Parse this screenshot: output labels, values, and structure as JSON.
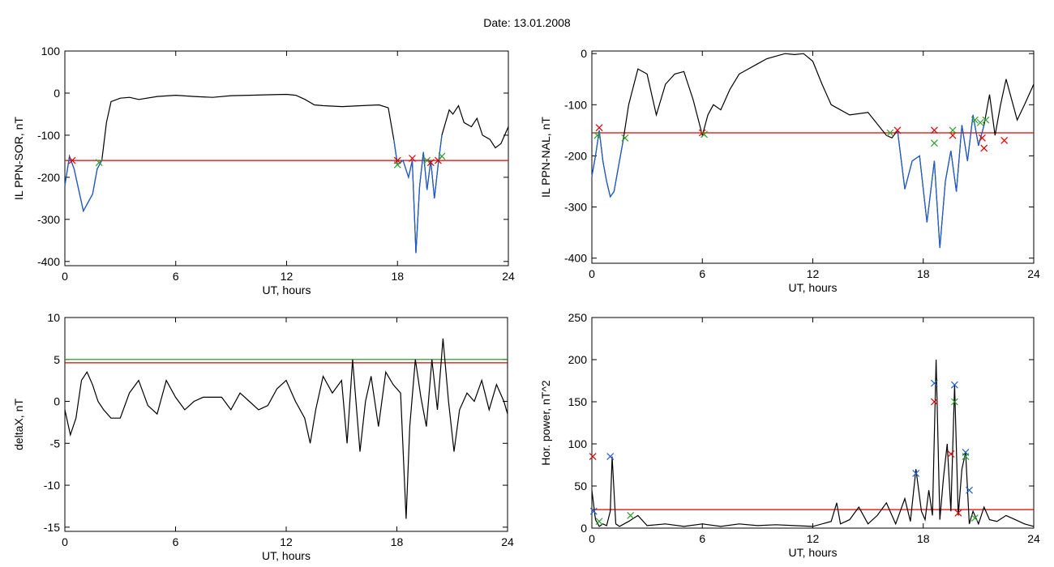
{
  "page": {
    "title": "Date:  13.01.2008"
  },
  "chart_data": [
    {
      "id": "p1",
      "type": "line",
      "xlabel": "UT, hours",
      "ylabel": "IL PPN-SOR, nT",
      "xlim": [
        0,
        24
      ],
      "ylim": [
        -410,
        100
      ],
      "xticks": [
        "0",
        "6",
        "12",
        "18",
        "24"
      ],
      "yticks": [
        "100",
        "0",
        "-100",
        "-200",
        "-300",
        "-400"
      ],
      "series": [
        {
          "color": "#000000",
          "x": [
            0,
            0.25,
            0.5,
            0.75,
            1.0,
            1.25,
            1.5,
            1.75,
            2.0,
            2.25,
            2.5,
            3,
            3.5,
            4,
            5,
            6,
            7,
            8,
            9,
            10,
            11,
            12,
            12.5,
            13,
            13.5,
            14,
            15,
            16,
            17,
            17.5,
            17.8,
            18.0,
            18.3,
            18.6,
            18.8,
            19.0,
            19.2,
            19.4,
            19.6,
            19.8,
            20.0,
            20.2,
            20.4,
            20.6,
            20.8,
            21.0,
            21.3,
            21.6,
            22.0,
            22.3,
            22.6,
            23.0,
            23.3,
            23.6,
            24
          ],
          "y": [
            -220,
            -150,
            -180,
            -230,
            -280,
            -260,
            -240,
            -180,
            -160,
            -70,
            -20,
            -12,
            -10,
            -15,
            -8,
            -5,
            -8,
            -10,
            -6,
            -5,
            -4,
            -3,
            -5,
            -15,
            -28,
            -30,
            -32,
            -30,
            -28,
            -35,
            -110,
            -170,
            -160,
            -200,
            -160,
            -380,
            -220,
            -140,
            -230,
            -160,
            -250,
            -170,
            -100,
            -70,
            -40,
            -50,
            -30,
            -70,
            -80,
            -60,
            -100,
            -110,
            -130,
            -120,
            -80
          ]
        },
        {
          "color": "#1f5fd0",
          "x": [
            0,
            0.25,
            0.5,
            0.75,
            1.0,
            1.25,
            1.5,
            1.75,
            2.0
          ],
          "y": [
            -220,
            -150,
            -180,
            -230,
            -280,
            -260,
            -240,
            -180,
            -160
          ]
        },
        {
          "color": "#1f5fd0",
          "x": [
            17.8,
            18.0,
            18.3,
            18.6,
            18.8,
            19.0,
            19.2,
            19.4,
            19.6,
            19.8,
            20.0,
            20.2,
            20.4
          ],
          "y": [
            -110,
            -170,
            -160,
            -200,
            -160,
            -380,
            -220,
            -140,
            -230,
            -160,
            -250,
            -170,
            -100
          ]
        }
      ],
      "hlines": [
        {
          "y": -160,
          "color": "#e00000"
        }
      ],
      "markers": [
        {
          "x": 0.4,
          "y": -160,
          "color": "#e00000"
        },
        {
          "x": 1.85,
          "y": -165,
          "color": "#2ca02c"
        },
        {
          "x": 18.0,
          "y": -160,
          "color": "#e00000"
        },
        {
          "x": 18.0,
          "y": -170,
          "color": "#2ca02c"
        },
        {
          "x": 18.8,
          "y": -155,
          "color": "#e00000"
        },
        {
          "x": 19.6,
          "y": -160,
          "color": "#2ca02c"
        },
        {
          "x": 19.8,
          "y": -165,
          "color": "#e00000"
        },
        {
          "x": 20.2,
          "y": -160,
          "color": "#e00000"
        },
        {
          "x": 20.4,
          "y": -150,
          "color": "#2ca02c"
        }
      ]
    },
    {
      "id": "p2",
      "type": "line",
      "xlabel": "UT, hours",
      "ylabel": "IL PPN-NAL, nT",
      "xlim": [
        0,
        24
      ],
      "ylim": [
        -410,
        5
      ],
      "xticks": [
        "0",
        "6",
        "12",
        "18",
        "24"
      ],
      "yticks": [
        "0",
        "-100",
        "-200",
        "-300",
        "-400"
      ],
      "series": [
        {
          "color": "#000000",
          "x": [
            0,
            0.2,
            0.4,
            0.6,
            0.8,
            1.0,
            1.2,
            1.4,
            1.7,
            2.0,
            2.5,
            3.0,
            3.5,
            4.0,
            4.5,
            5.0,
            5.5,
            6.0,
            6.3,
            6.6,
            7.0,
            7.5,
            8.0,
            8.5,
            9.0,
            9.5,
            10.0,
            10.5,
            11.0,
            11.5,
            12.0,
            12.5,
            13.0,
            14.0,
            15.0,
            16.0,
            16.3,
            16.6,
            17.0,
            17.4,
            17.8,
            18.2,
            18.6,
            18.9,
            19.2,
            19.5,
            19.8,
            20.1,
            20.4,
            20.7,
            21.0,
            21.3,
            21.6,
            21.9,
            22.2,
            22.5,
            22.8,
            23.1,
            23.5,
            24
          ],
          "y": [
            -240,
            -200,
            -150,
            -210,
            -250,
            -280,
            -270,
            -230,
            -170,
            -100,
            -30,
            -40,
            -120,
            -60,
            -40,
            -35,
            -90,
            -160,
            -120,
            -100,
            -110,
            -70,
            -40,
            -30,
            -20,
            -10,
            -5,
            0,
            -2,
            0,
            -15,
            -60,
            -100,
            -120,
            -115,
            -160,
            -165,
            -150,
            -265,
            -210,
            -200,
            -330,
            -210,
            -380,
            -250,
            -190,
            -270,
            -140,
            -210,
            -120,
            -180,
            -140,
            -80,
            -160,
            -100,
            -50,
            -90,
            -130,
            -100,
            -60
          ]
        },
        {
          "color": "#1f5fd0",
          "x": [
            0,
            0.2,
            0.4,
            0.6,
            0.8,
            1.0,
            1.2,
            1.4,
            1.7
          ],
          "y": [
            -240,
            -200,
            -150,
            -210,
            -250,
            -280,
            -270,
            -230,
            -170
          ]
        },
        {
          "color": "#1f5fd0",
          "x": [
            16.6,
            17.0,
            17.4,
            17.8,
            18.2,
            18.6,
            18.9,
            19.2,
            19.5,
            19.8,
            20.1,
            20.4,
            20.7,
            21.0,
            21.3
          ],
          "y": [
            -150,
            -265,
            -210,
            -200,
            -330,
            -210,
            -380,
            -250,
            -190,
            -270,
            -140,
            -210,
            -120,
            -180,
            -140
          ]
        }
      ],
      "hlines": [
        {
          "y": -155,
          "color": "#e00000"
        }
      ],
      "markers": [
        {
          "x": 0.3,
          "y": -160,
          "color": "#2ca02c"
        },
        {
          "x": 0.4,
          "y": -145,
          "color": "#e00000"
        },
        {
          "x": 1.8,
          "y": -165,
          "color": "#2ca02c"
        },
        {
          "x": 6.0,
          "y": -155,
          "color": "#e00000"
        },
        {
          "x": 6.1,
          "y": -158,
          "color": "#2ca02c"
        },
        {
          "x": 16.2,
          "y": -155,
          "color": "#2ca02c"
        },
        {
          "x": 16.6,
          "y": -150,
          "color": "#e00000"
        },
        {
          "x": 18.6,
          "y": -150,
          "color": "#e00000"
        },
        {
          "x": 18.6,
          "y": -175,
          "color": "#2ca02c"
        },
        {
          "x": 19.6,
          "y": -160,
          "color": "#e00000"
        },
        {
          "x": 19.6,
          "y": -150,
          "color": "#2ca02c"
        },
        {
          "x": 20.8,
          "y": -130,
          "color": "#2ca02c"
        },
        {
          "x": 21.1,
          "y": -135,
          "color": "#2ca02c"
        },
        {
          "x": 21.2,
          "y": -165,
          "color": "#e00000"
        },
        {
          "x": 21.3,
          "y": -185,
          "color": "#e00000"
        },
        {
          "x": 21.4,
          "y": -130,
          "color": "#2ca02c"
        },
        {
          "x": 22.4,
          "y": -170,
          "color": "#e00000"
        }
      ]
    },
    {
      "id": "p3",
      "type": "line",
      "xlabel": "UT, hours",
      "ylabel": "deltaX, nT",
      "xlim": [
        0,
        24
      ],
      "ylim": [
        -15.5,
        10
      ],
      "xticks": [
        "0",
        "6",
        "12",
        "18",
        "24"
      ],
      "yticks": [
        "10",
        "5",
        "0",
        "-5",
        "-10",
        "-15"
      ],
      "series": [
        {
          "color": "#000000",
          "x": [
            0,
            0.3,
            0.6,
            0.9,
            1.2,
            1.5,
            1.8,
            2.1,
            2.5,
            3.0,
            3.5,
            4.0,
            4.5,
            5.0,
            5.5,
            6.0,
            6.5,
            7.0,
            7.5,
            8.0,
            8.5,
            9.0,
            9.5,
            10.0,
            10.5,
            11.0,
            11.5,
            12.0,
            12.5,
            13.0,
            13.3,
            13.6,
            14.0,
            14.5,
            15.0,
            15.3,
            15.6,
            16.0,
            16.3,
            16.6,
            17.0,
            17.4,
            17.8,
            18.2,
            18.5,
            18.7,
            19.0,
            19.3,
            19.6,
            19.9,
            20.2,
            20.5,
            20.8,
            21.1,
            21.4,
            21.8,
            22.2,
            22.6,
            23.0,
            23.4,
            23.8,
            24
          ],
          "y": [
            -1,
            -4,
            -2,
            2.5,
            3.5,
            2,
            0,
            -1,
            -2,
            -2,
            1,
            2.5,
            -0.5,
            -1.5,
            2.5,
            0.5,
            -1,
            0,
            0.5,
            0.5,
            0.5,
            -1,
            1,
            0,
            -1,
            -0.5,
            1.5,
            2.5,
            0,
            -2,
            -5,
            -1,
            3,
            1,
            2.5,
            -5,
            5,
            -6,
            0,
            3,
            -3,
            3.5,
            2,
            1,
            -14,
            -3,
            5,
            0.5,
            -3,
            5,
            -1,
            7.5,
            0,
            -6,
            -1,
            1,
            0,
            2.5,
            -1,
            2,
            0,
            -1.5
          ]
        }
      ],
      "hlines": [
        {
          "y": 5.0,
          "color": "#2ca02c"
        },
        {
          "y": 4.6,
          "color": "#e00000"
        }
      ],
      "markers": []
    },
    {
      "id": "p4",
      "type": "line",
      "xlabel": "UT, hours",
      "ylabel": "Hor. power, nT^2",
      "xlim": [
        0,
        24
      ],
      "ylim": [
        0,
        250
      ],
      "xticks": [
        "0",
        "6",
        "12",
        "18",
        "24"
      ],
      "yticks": [
        "250",
        "200",
        "150",
        "100",
        "50",
        "0"
      ],
      "series": [
        {
          "color": "#000000",
          "x": [
            0,
            0.2,
            0.4,
            0.6,
            0.8,
            1.0,
            1.1,
            1.3,
            1.5,
            2.0,
            2.5,
            3.0,
            4.0,
            5.0,
            6.0,
            7.0,
            8.0,
            9.0,
            10.0,
            11.0,
            12.0,
            13.0,
            13.3,
            13.5,
            14.0,
            14.5,
            15.0,
            15.5,
            16.0,
            16.5,
            17.0,
            17.3,
            17.6,
            17.9,
            18.1,
            18.3,
            18.5,
            18.7,
            18.9,
            19.1,
            19.3,
            19.5,
            19.7,
            19.9,
            20.1,
            20.3,
            20.5,
            20.7,
            21.0,
            21.3,
            21.6,
            22.0,
            22.5,
            23.0,
            23.5,
            24
          ],
          "y": [
            45,
            10,
            2,
            5,
            3,
            20,
            85,
            5,
            2,
            8,
            15,
            3,
            5,
            2,
            5,
            2,
            5,
            3,
            4,
            3,
            2,
            8,
            30,
            5,
            10,
            25,
            5,
            15,
            30,
            5,
            35,
            8,
            70,
            20,
            10,
            45,
            15,
            200,
            10,
            60,
            100,
            20,
            170,
            15,
            70,
            90,
            5,
            20,
            5,
            25,
            10,
            8,
            15,
            10,
            5,
            2
          ]
        }
      ],
      "hlines": [
        {
          "y": 22,
          "color": "#e00000"
        }
      ],
      "markers": [
        {
          "x": 0.05,
          "y": 85,
          "color": "#e00000"
        },
        {
          "x": 0.1,
          "y": 20,
          "color": "#1f5fd0"
        },
        {
          "x": 0.4,
          "y": 8,
          "color": "#2ca02c"
        },
        {
          "x": 1.0,
          "y": 85,
          "color": "#1f5fd0"
        },
        {
          "x": 2.1,
          "y": 15,
          "color": "#2ca02c"
        },
        {
          "x": 17.6,
          "y": 65,
          "color": "#1f5fd0"
        },
        {
          "x": 18.6,
          "y": 172,
          "color": "#1f5fd0"
        },
        {
          "x": 18.6,
          "y": 150,
          "color": "#e00000"
        },
        {
          "x": 19.5,
          "y": 88,
          "color": "#e00000"
        },
        {
          "x": 19.7,
          "y": 170,
          "color": "#1f5fd0"
        },
        {
          "x": 19.7,
          "y": 150,
          "color": "#2ca02c"
        },
        {
          "x": 19.9,
          "y": 18,
          "color": "#e00000"
        },
        {
          "x": 20.3,
          "y": 90,
          "color": "#1f5fd0"
        },
        {
          "x": 20.3,
          "y": 85,
          "color": "#2ca02c"
        },
        {
          "x": 20.5,
          "y": 45,
          "color": "#1f5fd0"
        },
        {
          "x": 20.8,
          "y": 12,
          "color": "#2ca02c"
        }
      ]
    }
  ]
}
